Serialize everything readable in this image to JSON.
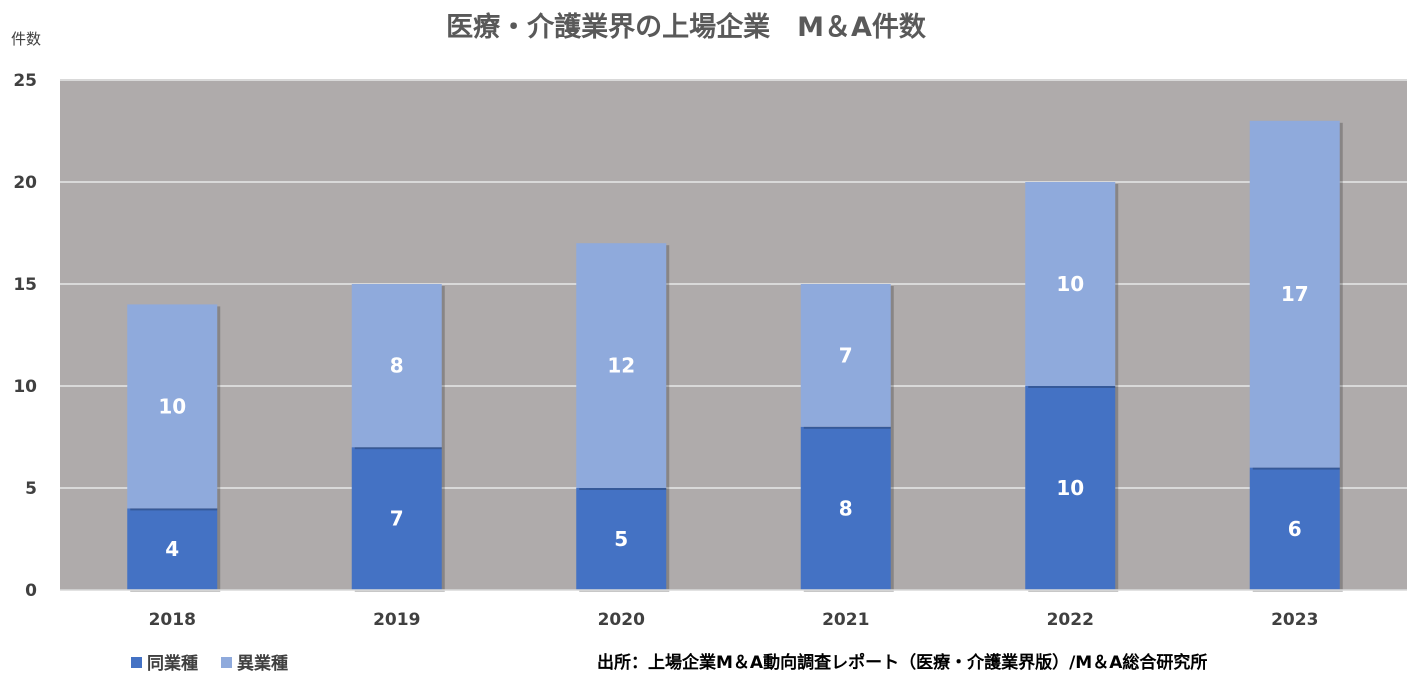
{
  "chart_data": {
    "type": "bar",
    "stacked": true,
    "title": "医療・介護業界の上場企業　M＆A件数",
    "ylabel": "件数",
    "xlabel": "",
    "categories": [
      "2018",
      "2019",
      "2020",
      "2021",
      "2022",
      "2023"
    ],
    "series": [
      {
        "name": "同業種",
        "values": [
          4,
          7,
          5,
          8,
          10,
          6
        ],
        "color": "#4472C4"
      },
      {
        "name": "異業種",
        "values": [
          10,
          8,
          12,
          7,
          10,
          17
        ],
        "color": "#8FAADC"
      }
    ],
    "ylim": [
      0,
      25
    ],
    "yticks": [
      0,
      5,
      10,
      15,
      20,
      25
    ],
    "grid": true,
    "legend_position": "bottom-left",
    "plot_background": "#AFABAB",
    "source": "出所：上場企業M＆A動向調査レポート（医療・介護業界版）/M＆A総合研究所"
  }
}
